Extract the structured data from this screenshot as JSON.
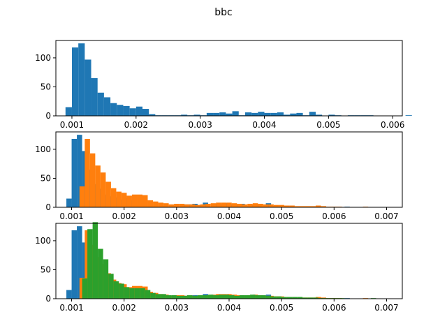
{
  "figure": {
    "suptitle": "bbc"
  },
  "colors": {
    "blue": "#1f77b4",
    "orange": "#ff7f0e",
    "green": "#2ca02c"
  },
  "chart_data": [
    {
      "type": "bar",
      "xlim": [
        0.00075,
        0.00615
      ],
      "ylim": [
        0,
        130
      ],
      "xticks": [
        0.001,
        0.002,
        0.003,
        0.004,
        0.005,
        0.006
      ],
      "xtick_labels": [
        "0.001",
        "0.002",
        "0.003",
        "0.004",
        "0.005",
        "0.006"
      ],
      "yticks": [
        0,
        50,
        100
      ],
      "ytick_labels": [
        "0",
        "50",
        "100"
      ],
      "bin_start": 0.0009,
      "bin_width": 0.0001,
      "series": [
        {
          "color_key": "blue",
          "values": [
            15,
            118,
            125,
            97,
            65,
            40,
            32,
            22,
            19,
            17,
            13,
            16,
            12,
            3,
            1,
            1,
            1,
            1,
            2,
            1,
            2,
            1,
            5,
            5,
            6,
            4,
            8,
            1,
            6,
            5,
            7,
            5,
            5,
            6,
            2,
            4,
            5,
            1,
            7,
            2,
            0,
            2,
            1,
            0,
            1,
            1,
            1,
            1,
            0,
            0,
            0,
            0,
            0,
            1
          ]
        }
      ]
    },
    {
      "type": "bar",
      "xlim": [
        0.0007,
        0.0073
      ],
      "ylim": [
        0,
        130
      ],
      "xticks": [
        0.001,
        0.002,
        0.003,
        0.004,
        0.005,
        0.006,
        0.007
      ],
      "xtick_labels": [
        "0.001",
        "0.002",
        "0.003",
        "0.004",
        "0.005",
        "0.006",
        "0.007"
      ],
      "yticks": [
        0,
        50,
        100
      ],
      "ytick_labels": [
        "0",
        "50",
        "100"
      ],
      "bin_start": 0.0009,
      "bin_width": 0.0001,
      "series": [
        {
          "color_key": "blue",
          "values": [
            15,
            118,
            125,
            97,
            65,
            40,
            32,
            22,
            19,
            17,
            13,
            16,
            12,
            3,
            1,
            1,
            1,
            1,
            2,
            1,
            2,
            1,
            5,
            5,
            6,
            4,
            8,
            1,
            6,
            5,
            7,
            5,
            5,
            6,
            2,
            4,
            5,
            1,
            7,
            2,
            0,
            2,
            1,
            0,
            1,
            1,
            1,
            1,
            0,
            0,
            0,
            0,
            0,
            1
          ]
        },
        {
          "color_key": "orange",
          "x_start": 0.00115,
          "bin_width": 0.0001,
          "values": [
            36,
            118,
            93,
            72,
            60,
            44,
            33,
            27,
            25,
            20,
            22,
            22,
            21,
            12,
            10,
            8,
            7,
            5,
            6,
            6,
            5,
            5,
            4,
            5,
            6,
            7,
            8,
            8,
            8,
            7,
            6,
            5,
            6,
            7,
            6,
            5,
            5,
            4,
            4,
            3,
            3,
            2,
            2,
            2,
            2,
            3,
            2,
            1,
            1,
            1,
            0,
            0,
            0,
            0,
            1
          ]
        }
      ]
    },
    {
      "type": "bar",
      "xlim": [
        0.0007,
        0.0073
      ],
      "ylim": [
        0,
        130
      ],
      "xticks": [
        0.001,
        0.002,
        0.003,
        0.004,
        0.005,
        0.006,
        0.007
      ],
      "xtick_labels": [
        "0.001",
        "0.002",
        "0.003",
        "0.004",
        "0.005",
        "0.006",
        "0.007"
      ],
      "yticks": [
        0,
        50,
        100
      ],
      "ytick_labels": [
        "0",
        "50",
        "100"
      ],
      "series": [
        {
          "color_key": "blue",
          "x_start": 0.0009,
          "bin_width": 0.0001,
          "values": [
            15,
            118,
            125,
            97,
            65,
            40,
            32,
            22,
            19,
            17,
            13,
            16,
            12,
            3,
            1,
            1,
            1,
            1,
            2,
            1,
            2,
            1,
            5,
            5,
            6,
            4,
            8,
            1,
            6,
            5,
            7,
            5,
            5,
            6,
            2,
            4,
            5,
            1,
            7,
            2,
            0,
            2,
            1,
            0,
            1,
            1,
            1,
            1,
            0,
            0,
            0,
            0,
            0,
            1
          ]
        },
        {
          "color_key": "orange",
          "x_start": 0.00115,
          "bin_width": 0.0001,
          "values": [
            36,
            118,
            93,
            72,
            60,
            44,
            33,
            27,
            25,
            20,
            22,
            22,
            21,
            12,
            10,
            8,
            7,
            5,
            6,
            6,
            5,
            5,
            4,
            5,
            6,
            7,
            8,
            8,
            8,
            7,
            6,
            5,
            6,
            7,
            6,
            5,
            5,
            4,
            4,
            3,
            3,
            2,
            2,
            2,
            2,
            3,
            2,
            1,
            1,
            1,
            0,
            0,
            0,
            0,
            1
          ]
        },
        {
          "color_key": "green",
          "x_start": 0.0012,
          "bin_width": 0.0001,
          "values": [
            35,
            120,
            132,
            86,
            68,
            43,
            30,
            26,
            20,
            18,
            18,
            18,
            15,
            10,
            8,
            8,
            6,
            6,
            5,
            5,
            6,
            5,
            6,
            6,
            7,
            6,
            7,
            7,
            6,
            5,
            6,
            6,
            7,
            6,
            6,
            5,
            4,
            4,
            3,
            3,
            3,
            3,
            2,
            2,
            2,
            1,
            1,
            1,
            1,
            1,
            0,
            0,
            0,
            0,
            0,
            1
          ]
        }
      ]
    }
  ]
}
